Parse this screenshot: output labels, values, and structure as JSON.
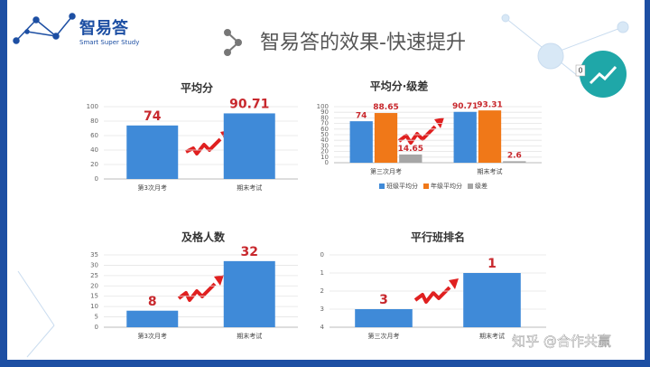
{
  "header": {
    "logo": "智易答",
    "logo_sub": "Smart Super Study",
    "title": "智易答的效果-快速提升",
    "badge": "0"
  },
  "watermark": "知乎 @合作共赢",
  "chart_data": [
    {
      "type": "bar",
      "title": "平均分",
      "categories": [
        "第3次月考",
        "期末考试"
      ],
      "values": [
        74,
        90.71
      ],
      "color": "#3f8ad8",
      "ylim": [
        0,
        100
      ],
      "yticks": [
        0,
        20,
        40,
        60,
        80,
        100
      ],
      "grid": true
    },
    {
      "type": "grouped_bar",
      "title": "平均分·级差",
      "categories": [
        "第三次月考",
        "期末考试"
      ],
      "series": [
        {
          "name": "班级平均分",
          "color": "#3f8ad8",
          "values": [
            74,
            90.71
          ]
        },
        {
          "name": "年级平均分",
          "color": "#f07818",
          "values": [
            88.65,
            93.31
          ]
        },
        {
          "name": "级差",
          "color": "#a6a6a6",
          "values": [
            14.65,
            2.6
          ]
        }
      ],
      "ylim": [
        0,
        100
      ],
      "yticks": [
        0,
        10,
        20,
        30,
        40,
        50,
        60,
        70,
        80,
        90,
        100
      ],
      "grid": true,
      "legend": "bottom"
    },
    {
      "type": "bar",
      "title": "及格人数",
      "categories": [
        "第3次月考",
        "期末考试"
      ],
      "values": [
        8,
        32
      ],
      "color": "#3f8ad8",
      "ylim": [
        0,
        35
      ],
      "yticks": [
        0,
        5,
        10,
        15,
        20,
        25,
        30,
        35
      ],
      "grid": true
    },
    {
      "type": "bar",
      "title": "平行班排名",
      "categories": [
        "第三次月考",
        "期末考试"
      ],
      "values": [
        3,
        1
      ],
      "color": "#3f8ad8",
      "ylim": [
        4,
        0
      ],
      "yticks": [
        0,
        1,
        2,
        3,
        4
      ],
      "grid": true
    }
  ]
}
